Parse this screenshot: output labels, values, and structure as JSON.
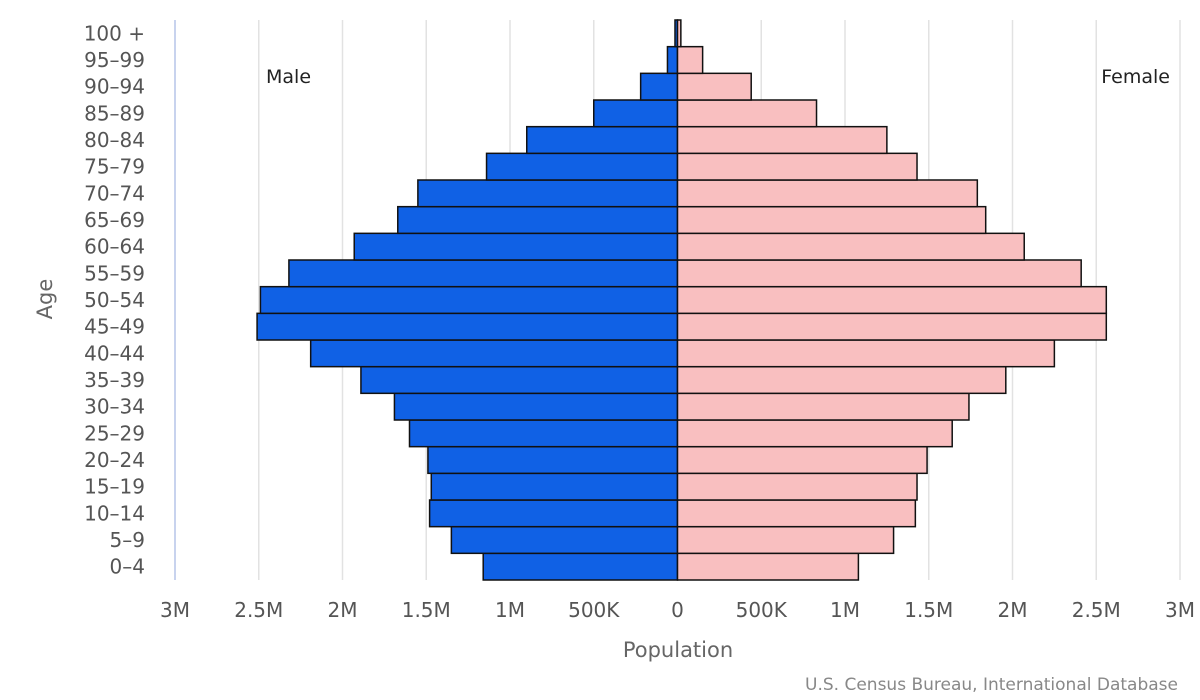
{
  "chart_data": {
    "type": "bar",
    "orientation": "horizontal",
    "layout": "population-pyramid",
    "categories": [
      "0-4",
      "5-9",
      "10-14",
      "15-19",
      "20-24",
      "25-29",
      "30-34",
      "35-39",
      "40-44",
      "45-49",
      "50-54",
      "55-59",
      "60-64",
      "65-69",
      "70-74",
      "75-79",
      "80-84",
      "85-89",
      "90-94",
      "95-99",
      "100 +"
    ],
    "series": [
      {
        "name": "Male",
        "color": "#1061e5",
        "side": "left",
        "values": [
          1160000,
          1350000,
          1480000,
          1470000,
          1490000,
          1600000,
          1690000,
          1890000,
          2190000,
          2510000,
          2490000,
          2320000,
          1930000,
          1670000,
          1550000,
          1140000,
          900000,
          500000,
          220000,
          60000,
          15000
        ]
      },
      {
        "name": "Female",
        "color": "#f9bfc0",
        "side": "right",
        "values": [
          1080000,
          1290000,
          1420000,
          1430000,
          1490000,
          1640000,
          1740000,
          1960000,
          2250000,
          2560000,
          2560000,
          2410000,
          2070000,
          1840000,
          1790000,
          1430000,
          1250000,
          830000,
          440000,
          150000,
          20000
        ]
      }
    ],
    "xlabel": "Population",
    "ylabel": "Age",
    "xlim": [
      -3000000,
      3000000
    ],
    "x_ticks": [
      {
        "value": -3000000,
        "label": "3M"
      },
      {
        "value": -2500000,
        "label": "2.5M"
      },
      {
        "value": -2000000,
        "label": "2M"
      },
      {
        "value": -1500000,
        "label": "1.5M"
      },
      {
        "value": -1000000,
        "label": "1M"
      },
      {
        "value": -500000,
        "label": "500K"
      },
      {
        "value": 0,
        "label": "0"
      },
      {
        "value": 500000,
        "label": "500K"
      },
      {
        "value": 1000000,
        "label": "1M"
      },
      {
        "value": 1500000,
        "label": "1.5M"
      },
      {
        "value": 2000000,
        "label": "2M"
      },
      {
        "value": 2500000,
        "label": "2.5M"
      },
      {
        "value": 3000000,
        "label": "3M"
      }
    ],
    "y_tick_labels": [
      "0–4",
      "5–9",
      "10–14",
      "15–19",
      "20–24",
      "25–29",
      "30–34",
      "35–39",
      "40–44",
      "45–49",
      "50–54",
      "55–59",
      "60–64",
      "65–69",
      "70–74",
      "75–79",
      "80–84",
      "85–89",
      "90–94",
      "95–99",
      "100 +"
    ],
    "grid": true,
    "legend": {
      "male": "Male",
      "female": "Female",
      "placement": "top"
    },
    "credit": "U.S. Census Bureau, International Database",
    "bar_outline_color": "#111111",
    "grid_color": "#e2e2e2",
    "axis_line_color": "#c8d3ee"
  }
}
